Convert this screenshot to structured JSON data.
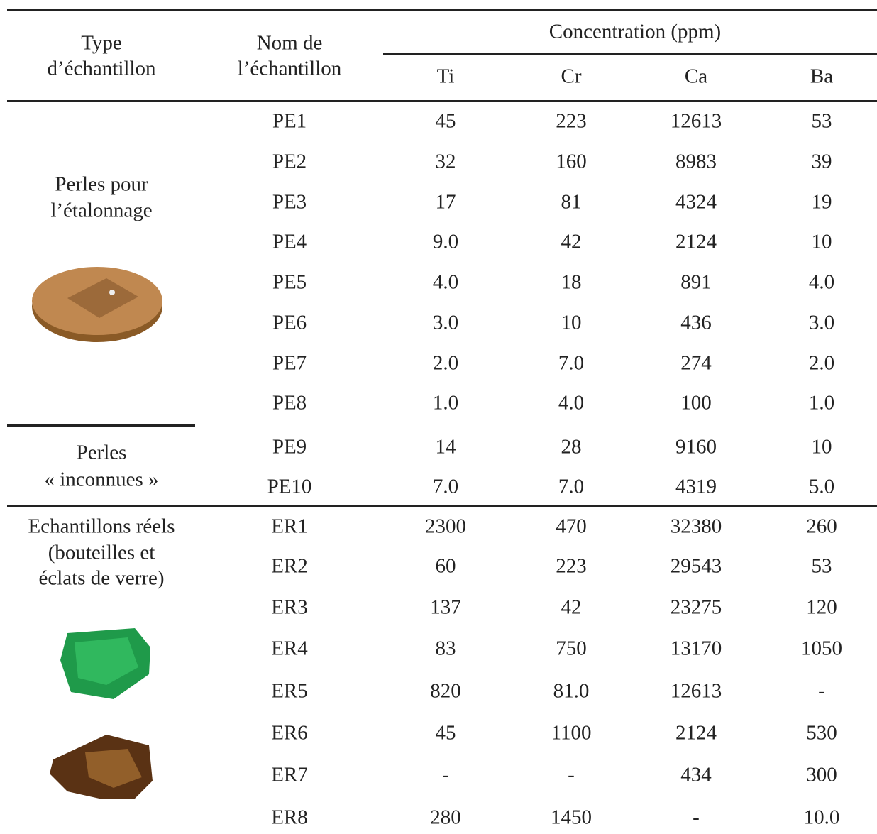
{
  "header": {
    "type_lines": [
      "Type",
      "d’échantillon"
    ],
    "name_lines": [
      "Nom de",
      "l’échantillon"
    ],
    "group": "Concentration (ppm)",
    "elements": [
      "Ti",
      "Cr",
      "Ca",
      "Ba"
    ]
  },
  "groups": [
    {
      "label_lines": [
        "Perles pour",
        "l’étalonnage"
      ],
      "rows": [
        [
          "PE1",
          "45",
          "223",
          "12613",
          "53"
        ],
        [
          "PE2",
          "32",
          "160",
          "8983",
          "39"
        ],
        [
          "PE3",
          "17",
          "81",
          "4324",
          "19"
        ],
        [
          "PE4",
          "9.0",
          "42",
          "2124",
          "10"
        ],
        [
          "PE5",
          "4.0",
          "18",
          "891",
          "4.0"
        ],
        [
          "PE6",
          "3.0",
          "10",
          "436",
          "3.0"
        ],
        [
          "PE7",
          "2.0",
          "7.0",
          "274",
          "2.0"
        ],
        [
          "PE8",
          "1.0",
          "4.0",
          "100",
          "1.0"
        ]
      ]
    },
    {
      "label_lines": [
        "Perles",
        "« inconnues »"
      ],
      "rows": [
        [
          "PE9",
          "14",
          "28",
          "9160",
          "10"
        ],
        [
          "PE10",
          "7.0",
          "7.0",
          "4319",
          "5.0"
        ]
      ]
    },
    {
      "label_lines": [
        "Echantillons réels",
        "(bouteilles et",
        "éclats de verre)"
      ],
      "rows": [
        [
          "ER1",
          "2300",
          "470",
          "32380",
          "260"
        ],
        [
          "ER2",
          "60",
          "223",
          "29543",
          "53"
        ],
        [
          "ER3",
          "137",
          "42",
          "23275",
          "120"
        ],
        [
          "ER4",
          "83",
          "750",
          "13170",
          "1050"
        ],
        [
          "ER5",
          "820",
          "81.0",
          "12613",
          "-"
        ],
        [
          "ER6",
          "45",
          "1100",
          "2124",
          "530"
        ],
        [
          "ER7",
          "-",
          "-",
          "434",
          "300"
        ],
        [
          "ER8",
          "280",
          "1450",
          "-",
          "10.0"
        ]
      ]
    }
  ]
}
